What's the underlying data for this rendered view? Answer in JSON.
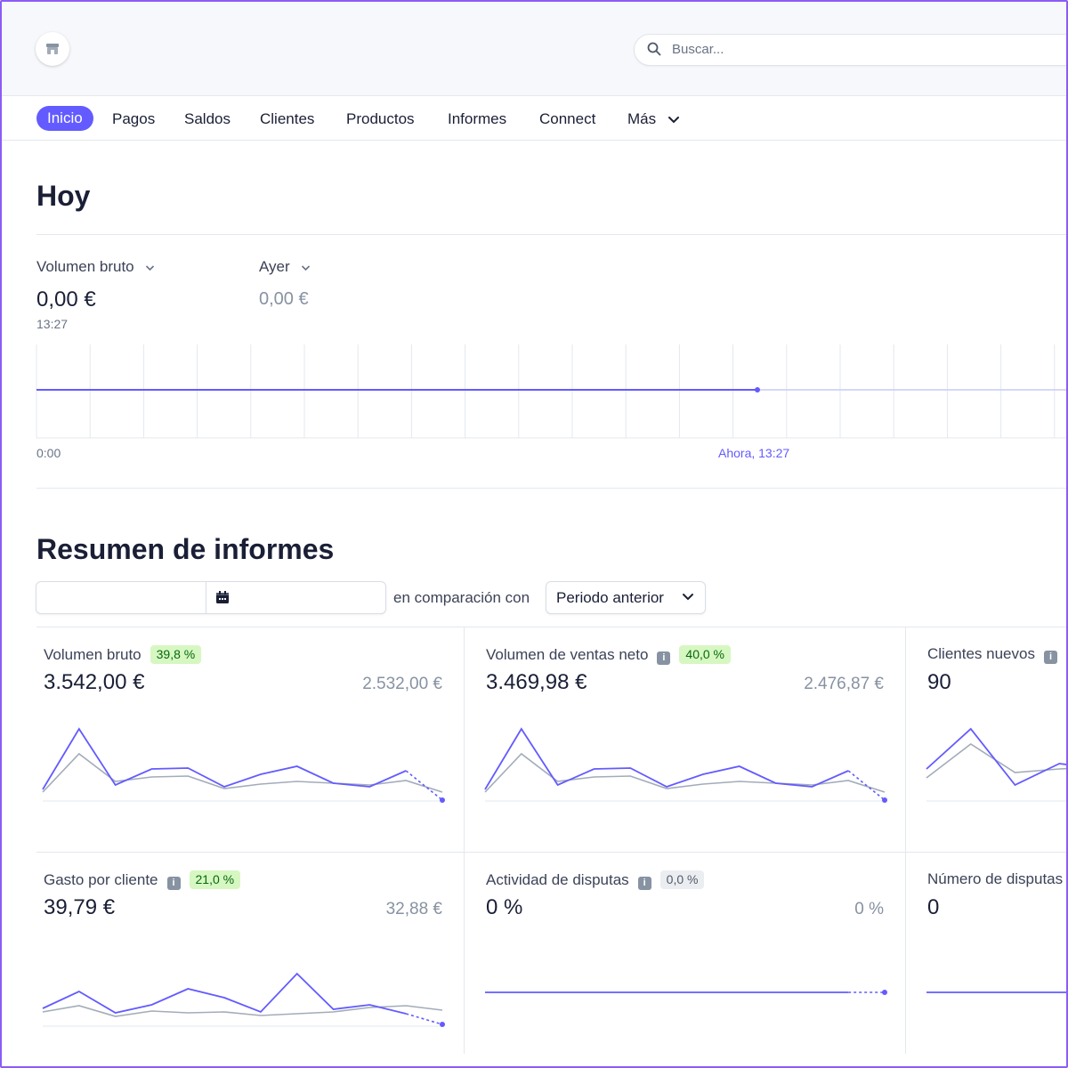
{
  "colors": {
    "accent": "#635bff",
    "compare_line": "#a3acb9",
    "positive_bg": "#d7f7c2",
    "positive_text": "#05690d"
  },
  "header": {
    "logo_icon": "store-icon",
    "search": {
      "placeholder": "Buscar...",
      "icon": "search-icon"
    }
  },
  "nav": {
    "items": [
      {
        "label": "Inicio",
        "active": true
      },
      {
        "label": "Pagos"
      },
      {
        "label": "Saldos"
      },
      {
        "label": "Clientes"
      },
      {
        "label": "Productos"
      },
      {
        "label": "Informes"
      },
      {
        "label": "Connect"
      },
      {
        "label": "Más",
        "icon": "chevron-down-icon"
      }
    ]
  },
  "today": {
    "title": "Hoy",
    "metric_label": "Volumen bruto",
    "metric_value": "0,00 €",
    "metric_time": "13:27",
    "compare_label": "Ayer",
    "compare_value": "0,00 €",
    "axis_start": "0:00",
    "axis_now": "Ahora, 13:27",
    "chart_data": {
      "type": "line",
      "series": [
        {
          "values": [
            0,
            0
          ]
        }
      ],
      "ylim": [
        0,
        1
      ],
      "grid": true
    }
  },
  "summary": {
    "title": "Resumen de informes",
    "compare_text": "en comparación con",
    "period_select": "Periodo anterior",
    "calendar_icon": "calendar-icon",
    "cards": [
      {
        "title": "Volumen bruto",
        "badge": "39,8 %",
        "badge_type": "positive",
        "info": false,
        "value": "3.542,00 €",
        "previous": "2.532,00 €",
        "chart_data": {
          "type": "line",
          "series": [
            {
              "values": [
                7,
                75,
                12,
                30,
                31,
                10,
                24,
                33,
                14,
                10,
                28,
                -5
              ]
            },
            {
              "values": [
                4,
                47,
                16,
                21,
                22,
                8,
                13,
                16,
                14,
                12,
                17,
                4
              ]
            }
          ]
        }
      },
      {
        "title": "Volumen de ventas neto",
        "badge": "40,0 %",
        "badge_type": "positive",
        "info": true,
        "value": "3.469,98 €",
        "previous": "2.476,87 €",
        "chart_data": {
          "type": "line",
          "series": [
            {
              "values": [
                7,
                75,
                12,
                30,
                31,
                10,
                24,
                33,
                14,
                10,
                28,
                -5
              ]
            },
            {
              "values": [
                4,
                47,
                16,
                21,
                22,
                8,
                13,
                16,
                14,
                12,
                17,
                4
              ]
            }
          ]
        }
      },
      {
        "title": "Clientes nuevos",
        "badge": "",
        "badge_type": "",
        "info": true,
        "value": "90",
        "previous": "",
        "chart_data": {
          "type": "line",
          "series": [
            {
              "values": [
                30,
                75,
                12,
                36,
                30
              ]
            },
            {
              "values": [
                20,
                58,
                26,
                30,
                32
              ]
            }
          ]
        }
      },
      {
        "title": "Gasto por cliente",
        "badge": "21,0 %",
        "badge_type": "positive",
        "info": true,
        "value": "39,79 €",
        "previous": "32,88 €",
        "chart_data": {
          "type": "line",
          "series": [
            {
              "values": [
                14,
                33,
                9,
                18,
                36,
                26,
                10,
                53,
                13,
                18,
                8,
                -4
              ]
            },
            {
              "values": [
                10,
                17,
                5,
                11,
                9,
                10,
                6,
                8,
                10,
                15,
                17,
                12
              ]
            }
          ]
        }
      },
      {
        "title": "Actividad de disputas",
        "badge": "0,0 %",
        "badge_type": "neutral",
        "info": true,
        "value": "0 %",
        "previous": "0 %",
        "chart_data": {
          "type": "line",
          "series": [
            {
              "values": [
                0,
                0,
                0,
                0,
                0,
                0,
                0,
                0,
                0,
                0,
                0,
                0
              ]
            }
          ]
        }
      },
      {
        "title": "Número de disputas",
        "badge": "",
        "badge_type": "",
        "info": false,
        "value": "0",
        "previous": "",
        "chart_data": {
          "type": "line",
          "series": [
            {
              "values": [
                0,
                0,
                0,
                0,
                0
              ]
            }
          ]
        }
      }
    ]
  }
}
